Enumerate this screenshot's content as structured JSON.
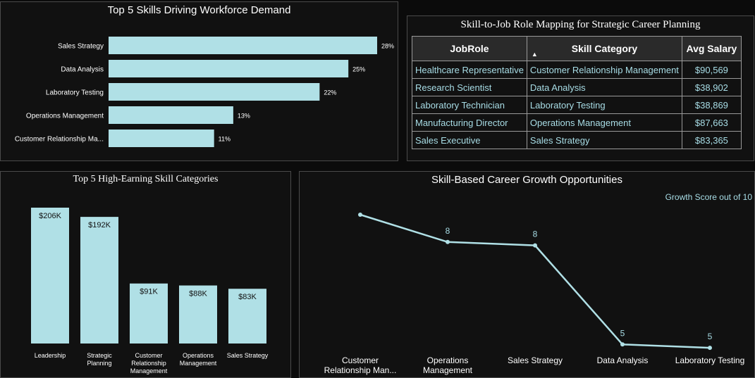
{
  "colors": {
    "bar": "#b0e0e6",
    "line": "#b0e0e6",
    "panel_bg": "#111111",
    "border": "#4a4a4a",
    "text": "#ffffff",
    "cell_text": "#a8dde6"
  },
  "workforce_chart": {
    "title": "Top 5 Skills Driving Workforce Demand",
    "chart_data": {
      "type": "bar",
      "orientation": "horizontal",
      "categories": [
        "Sales Strategy",
        "Data Analysis",
        "Laboratory Testing",
        "Operations Management",
        "Customer Relationship Ma..."
      ],
      "values": [
        28,
        25,
        22,
        13,
        11
      ],
      "value_labels": [
        "28%",
        "25%",
        "22%",
        "13%",
        "11%"
      ],
      "unit": "%"
    }
  },
  "role_table": {
    "title": "Skill-to-Job Role Mapping for Strategic Career Planning",
    "headers": [
      "JobRole",
      "Skill Category",
      "Avg Salary"
    ],
    "sort_icon": "sort-ascending-icon",
    "rows": [
      [
        "Healthcare Representative",
        "Customer Relationship Management",
        "$90,569"
      ],
      [
        "Research Scientist",
        "Data Analysis",
        "$38,902"
      ],
      [
        "Laboratory Technician",
        "Laboratory Testing",
        "$38,869"
      ],
      [
        "Manufacturing Director",
        "Operations Management",
        "$87,663"
      ],
      [
        "Sales Executive",
        "Sales Strategy",
        "$83,365"
      ]
    ]
  },
  "earning_chart": {
    "title": "Top 5 High-Earning Skill Categories",
    "chart_data": {
      "type": "bar",
      "orientation": "vertical",
      "categories": [
        [
          "Leadership"
        ],
        [
          "Strategic",
          "Planning"
        ],
        [
          "Customer",
          "Relationship",
          "Management"
        ],
        [
          "Operations",
          "Management"
        ],
        [
          "Sales Strategy"
        ]
      ],
      "values": [
        206,
        192,
        91,
        88,
        83
      ],
      "value_labels": [
        "$206K",
        "$192K",
        "$91K",
        "$88K",
        "$83K"
      ],
      "unit": "$K"
    }
  },
  "growth_chart": {
    "title": "Skill-Based Career Growth Opportunities",
    "subtitle": "Growth Score out of 10",
    "chart_data": {
      "type": "line",
      "categories": [
        [
          "Customer",
          "Relationship Man..."
        ],
        [
          "Operations",
          "Management"
        ],
        [
          "Sales Strategy"
        ],
        [
          "Data Analysis"
        ],
        [
          "Laboratory Testing"
        ]
      ],
      "values": [
        8.8,
        8.0,
        7.9,
        5.0,
        4.9
      ],
      "value_labels": [
        "",
        "8",
        "8",
        "5",
        "5"
      ],
      "ymax": 10
    }
  }
}
